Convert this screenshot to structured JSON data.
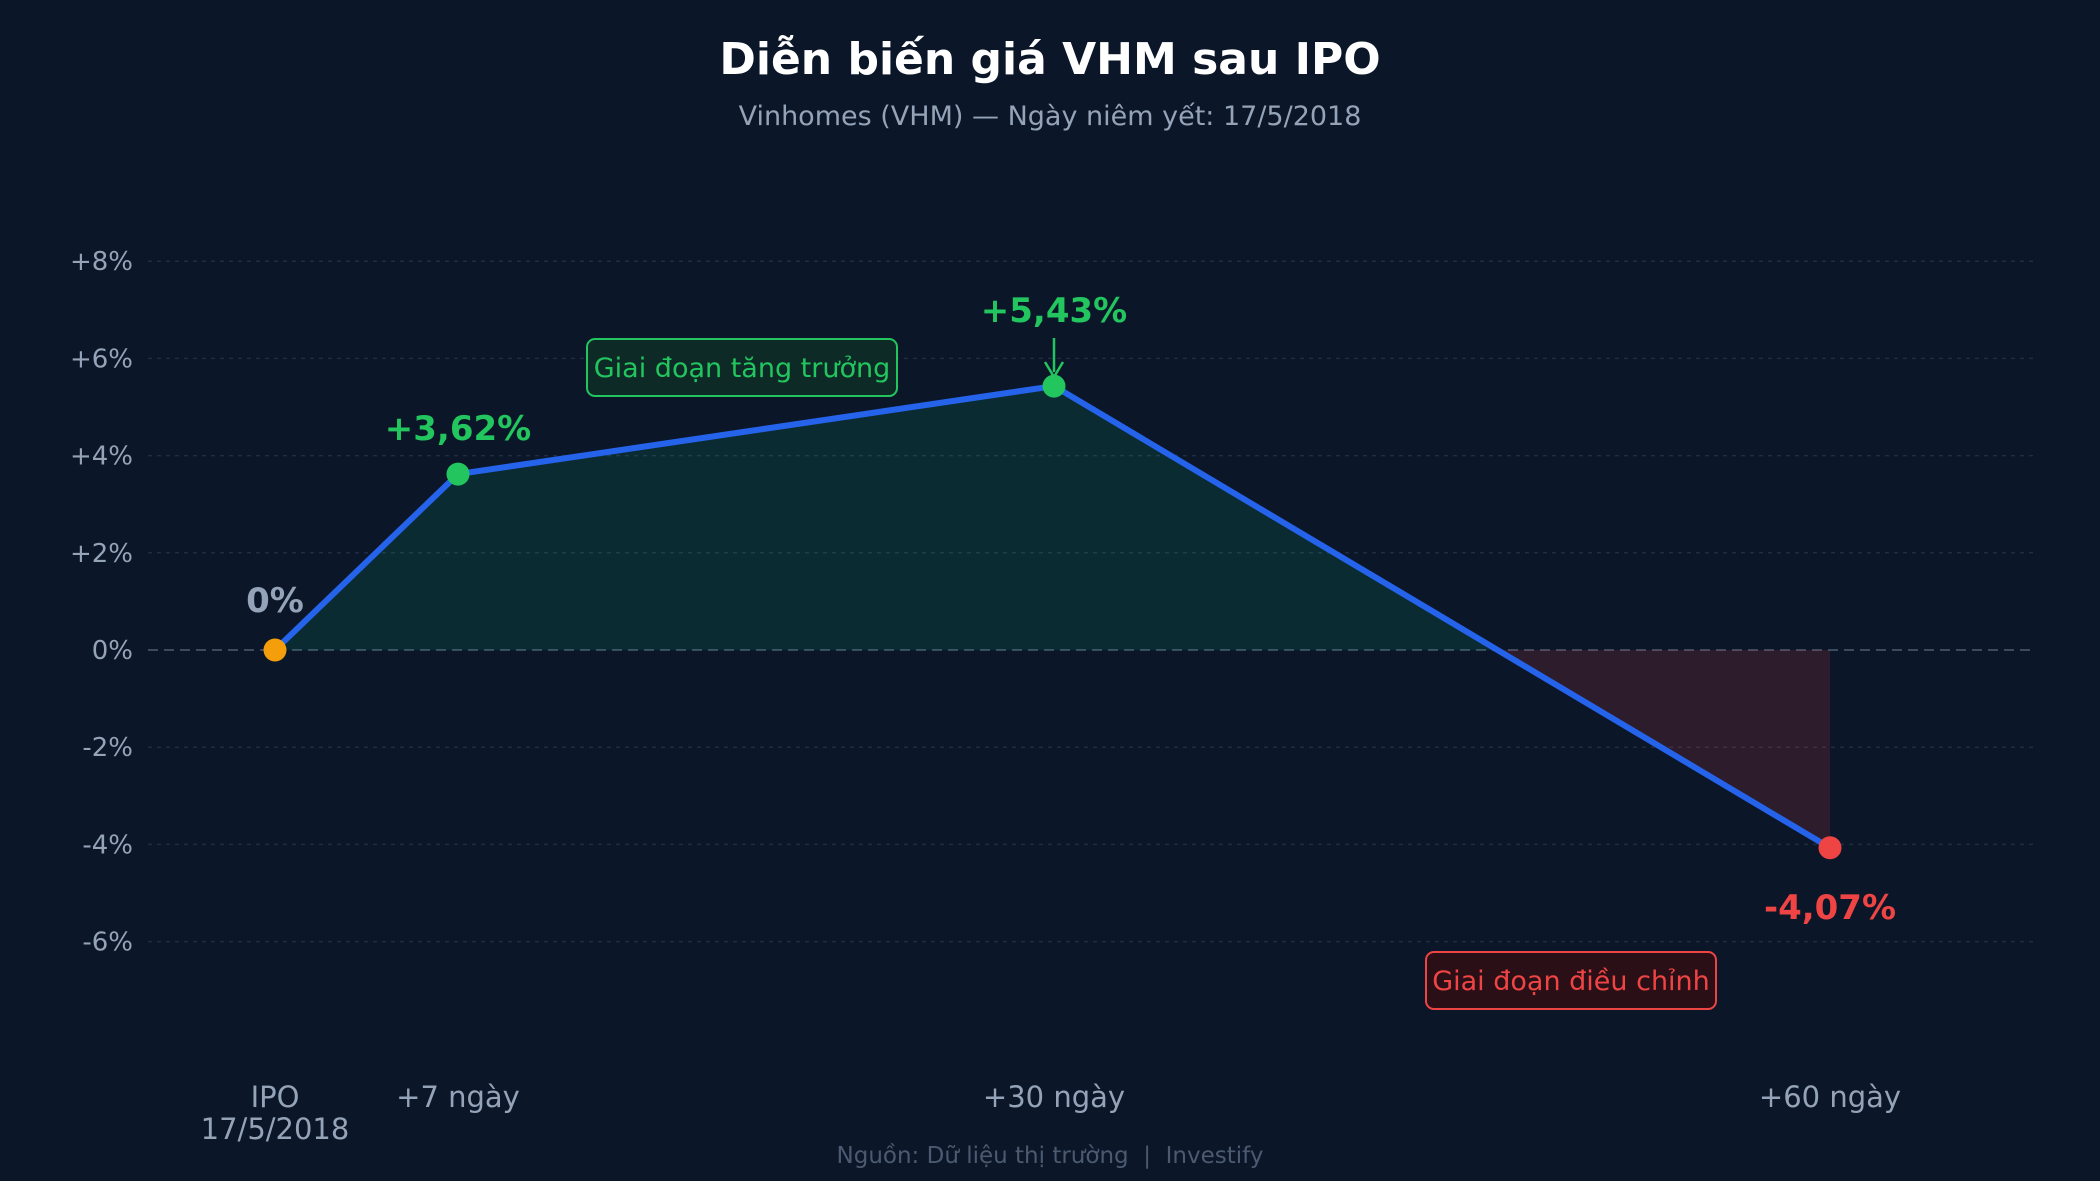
{
  "chart_data": {
    "type": "line",
    "title": "Diễn biến giá VHM sau IPO",
    "subtitle": "Vinhomes (VHM) — Ngày niêm yết: 17/5/2018",
    "x": [
      0,
      7,
      30,
      60
    ],
    "x_labels": [
      [
        "IPO",
        "17/5/2018"
      ],
      [
        "+7 ngày"
      ],
      [
        "+30 ngày"
      ],
      [
        "+60 ngày"
      ]
    ],
    "series": [
      {
        "values": [
          0,
          3.62,
          5.43,
          -4.07
        ],
        "point_labels": [
          "0%",
          "+3,62%",
          "+5,43%",
          "-4,07%"
        ],
        "point_colors": [
          "#f59e0b",
          "#22c55e",
          "#22c55e",
          "#ef4444"
        ],
        "label_colors": [
          "#94a3b8",
          "#22c55e",
          "#22c55e",
          "#ef4444"
        ]
      }
    ],
    "ylim": [
      -8,
      9
    ],
    "yticks": [
      8,
      6,
      4,
      2,
      0,
      -2,
      -4,
      -6
    ],
    "ytick_labels": [
      "+8%",
      "+6%",
      "+4%",
      "+2%",
      "0%",
      "-2%",
      "-4%",
      "-6%"
    ],
    "grid": true,
    "annotations": [
      {
        "text": "Giai đoạn tăng trưởng",
        "color": "#22c55e"
      },
      {
        "text": "Giai đoạn điều chỉnh",
        "color": "#ef4444"
      }
    ],
    "source": "Nguồn: Dữ liệu thị trường  |  Investify",
    "colors": {
      "background": "#0b1628",
      "line": "#2563eb",
      "grid": "#1f2d42",
      "zero_line": "#3b4a5e",
      "positive_fill": "#10b981",
      "negative_fill": "#ef4444"
    }
  }
}
